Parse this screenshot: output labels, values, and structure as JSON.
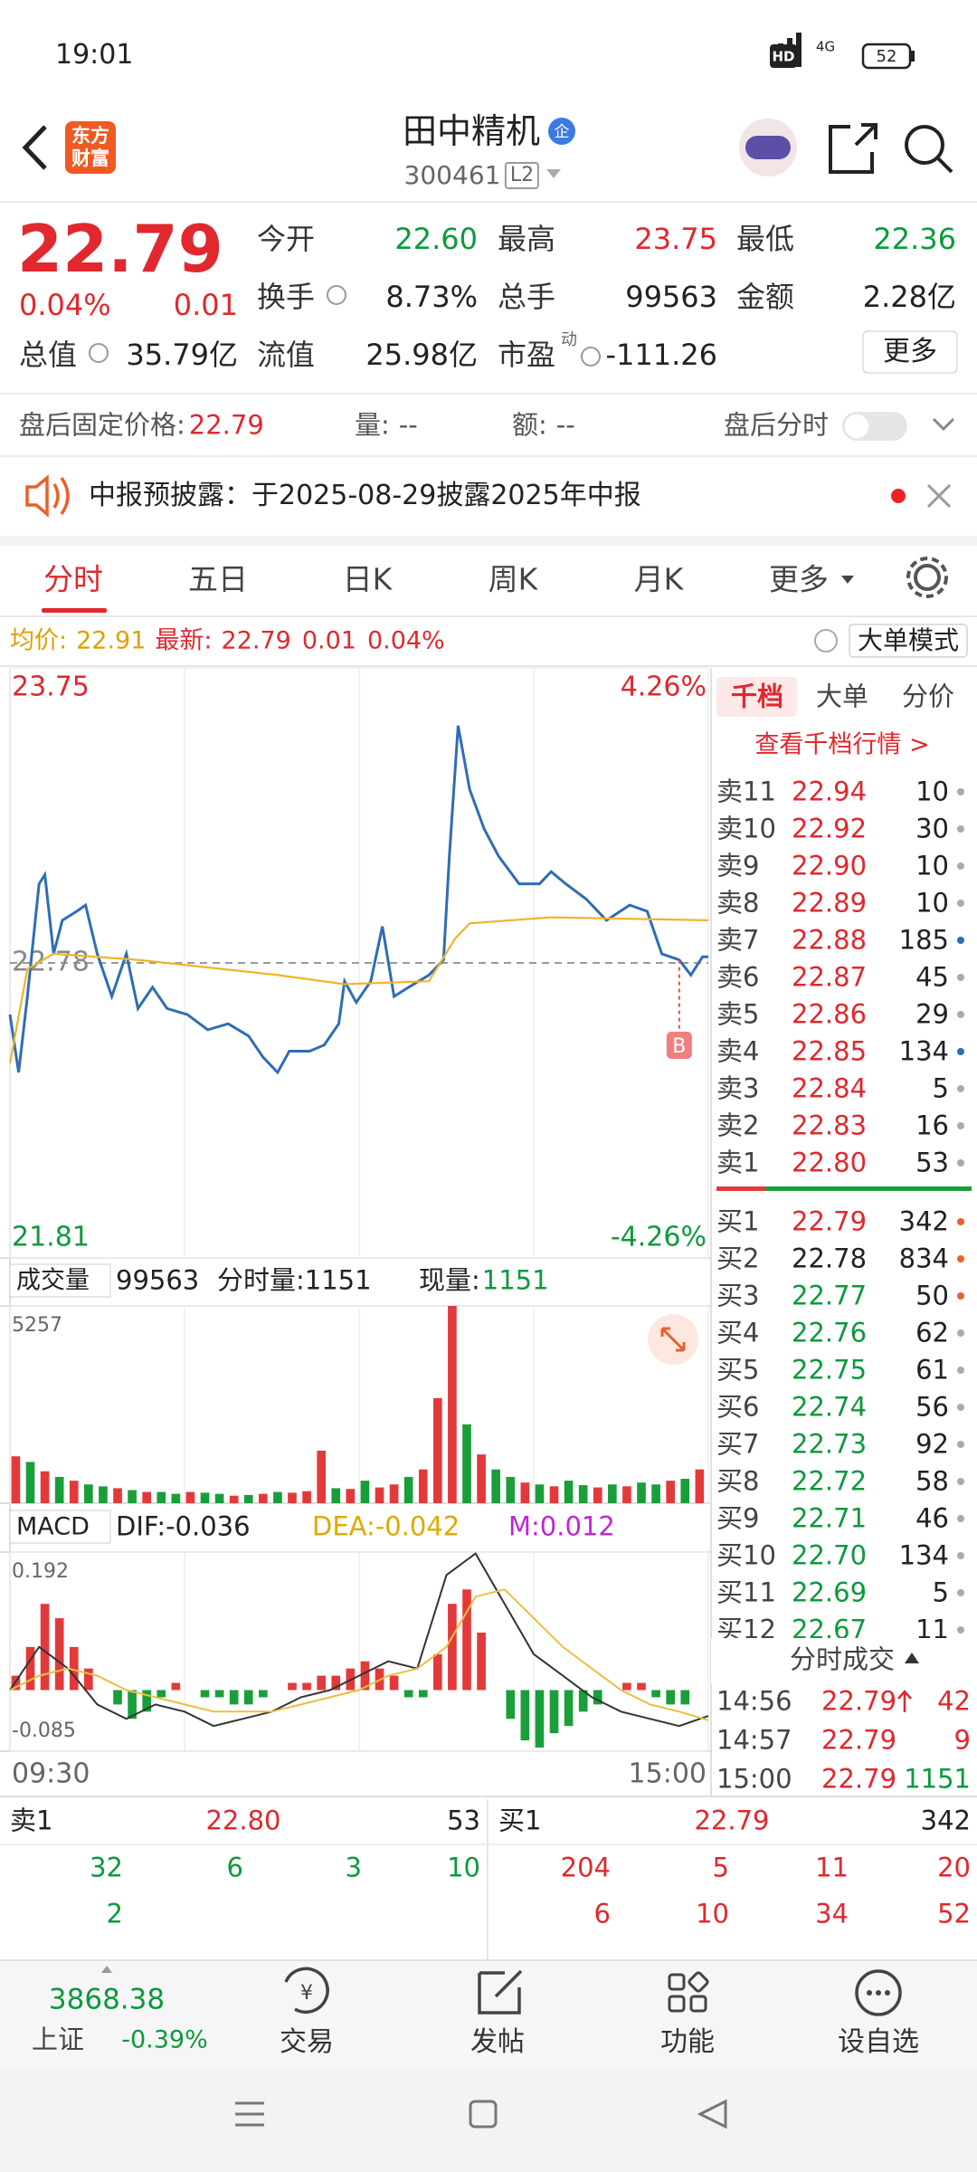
{
  "status_bar": {
    "time": "19:01",
    "hd": "HD",
    "network": "4G",
    "battery": "52"
  },
  "header": {
    "logo": [
      "东方",
      "财富"
    ],
    "title": "田中精机",
    "badge": "企",
    "code": "300461",
    "level": "L2"
  },
  "quote": {
    "price": "22.79",
    "change_pct": "0.04%",
    "change": "0.01",
    "fields": [
      {
        "label": "今开",
        "value": "22.60"
      },
      {
        "label": "最高",
        "value": "23.75"
      },
      {
        "label": "最低",
        "value": "22.36"
      },
      {
        "label": "换手",
        "value": "8.73%"
      },
      {
        "label": "总手",
        "value": "99563"
      },
      {
        "label": "金额",
        "value": "2.28亿"
      },
      {
        "label": "总值",
        "value": "35.79亿"
      },
      {
        "label": "流值",
        "value": "25.98亿"
      },
      {
        "label": "市盈",
        "value": "-111.26"
      }
    ],
    "pe_sup": "动",
    "more": "更多"
  },
  "after_hours": {
    "label": "盘后固定价格:",
    "price": "22.79",
    "volume_label": "量:",
    "volume": "--",
    "amount_label": "额:",
    "amount": "--",
    "toggle_label": "盘后分时"
  },
  "notice": "中报预披露：于2025-08-29披露2025年中报",
  "tabs": [
    "分时",
    "五日",
    "日K",
    "周K",
    "月K",
    "更多"
  ],
  "info_bar": {
    "avg_label": "均价:",
    "avg": "22.91",
    "last_label": "最新:",
    "last": "22.79",
    "change": "0.01",
    "change_pct": "0.04%",
    "mode": "大单模式"
  },
  "volume_header": {
    "selector": "成交量",
    "total": "99563",
    "minute_label": "分时量:1151",
    "current_label": "现量:",
    "current": "1151"
  },
  "macd_header": {
    "selector": "MACD",
    "dif": "DIF:-0.036",
    "dea": "DEA:-0.042",
    "m": "M:0.012"
  },
  "chart_data": [
    {
      "type": "line",
      "xlim": [
        0,
        240
      ],
      "ylim": [
        21.81,
        23.75
      ],
      "yticks": [
        23.75,
        22.78,
        21.81
      ],
      "y2lim": [
        -4.26,
        4.26
      ],
      "y2ticks": [
        {
          "value": 4.26,
          "label": "4.26%"
        },
        {
          "value": -4.26,
          "label": "-4.26%"
        }
      ],
      "series": [
        {
          "color": "#2f6db5",
          "x": [
            0,
            3,
            6,
            10,
            12,
            15,
            18,
            23,
            26,
            30,
            35,
            40,
            44,
            49,
            54,
            61,
            68,
            75,
            82,
            87,
            92,
            96,
            103,
            108,
            113,
            115,
            119,
            124,
            128,
            132,
            137,
            144,
            149,
            151,
            154,
            158,
            163,
            168,
            175,
            182,
            186,
            191,
            198,
            205,
            213,
            219,
            224,
            230,
            234,
            238,
            240
          ],
          "values": [
            22.61,
            22.42,
            22.67,
            23.04,
            23.07,
            22.81,
            22.92,
            22.95,
            22.97,
            22.81,
            22.67,
            22.81,
            22.63,
            22.7,
            22.63,
            22.61,
            22.56,
            22.58,
            22.54,
            22.47,
            22.42,
            22.49,
            22.49,
            22.51,
            22.58,
            22.72,
            22.65,
            22.72,
            22.9,
            22.67,
            22.7,
            22.74,
            22.79,
            23.13,
            23.56,
            23.35,
            23.22,
            23.13,
            23.04,
            23.04,
            23.08,
            23.04,
            22.99,
            22.92,
            22.97,
            22.95,
            22.81,
            22.79,
            22.74,
            22.8,
            22.8
          ]
        },
        {
          "color": "#f0b429",
          "x": [
            0,
            6,
            15,
            44,
            92,
            115,
            144,
            153,
            158,
            186,
            240
          ],
          "values": [
            22.45,
            22.76,
            22.81,
            22.79,
            22.74,
            22.71,
            22.72,
            22.86,
            22.91,
            22.93,
            22.92
          ]
        }
      ],
      "marker": {
        "label": "B",
        "x": 230
      }
    },
    {
      "type": "bar",
      "xlim": [
        0,
        240
      ],
      "ylim": [
        0,
        5257
      ],
      "yticks": [
        5257
      ],
      "x": [
        2,
        7,
        12,
        17,
        22,
        27,
        32,
        37,
        42,
        47,
        52,
        57,
        62,
        67,
        72,
        77,
        82,
        87,
        92,
        97,
        102,
        107,
        112,
        117,
        122,
        127,
        132,
        137,
        142,
        147,
        152,
        157,
        162,
        167,
        172,
        177,
        182,
        187,
        192,
        197,
        202,
        207,
        212,
        217,
        222,
        227,
        232,
        237
      ],
      "values": [
        1250,
        1100,
        850,
        700,
        600,
        500,
        450,
        400,
        350,
        300,
        300,
        250,
        300,
        280,
        250,
        200,
        220,
        250,
        300,
        280,
        320,
        1400,
        400,
        380,
        600,
        420,
        500,
        700,
        900,
        2800,
        5257,
        2100,
        1300,
        900,
        700,
        550,
        500,
        450,
        600,
        480,
        420,
        500,
        450,
        550,
        500,
        600,
        650,
        900
      ],
      "colors": [
        "#e23a3a",
        "#1a9e3a",
        "#e23a3a",
        "#1a9e3a",
        "#e23a3a",
        "#1a9e3a",
        "#1a9e3a",
        "#e23a3a",
        "#1a9e3a",
        "#e23a3a",
        "#1a9e3a",
        "#1a9e3a",
        "#e23a3a",
        "#1a9e3a",
        "#1a9e3a",
        "#e23a3a",
        "#1a9e3a",
        "#e23a3a",
        "#1a9e3a",
        "#e23a3a",
        "#e23a3a",
        "#e23a3a",
        "#1a9e3a",
        "#e23a3a",
        "#1a9e3a",
        "#e23a3a",
        "#e23a3a",
        "#1a9e3a",
        "#e23a3a",
        "#e23a3a",
        "#e23a3a",
        "#1a9e3a",
        "#e23a3a",
        "#1a9e3a",
        "#1a9e3a",
        "#e23a3a",
        "#1a9e3a",
        "#e23a3a",
        "#1a9e3a",
        "#1a9e3a",
        "#e23a3a",
        "#1a9e3a",
        "#e23a3a",
        "#1a9e3a",
        "#1a9e3a",
        "#e23a3a",
        "#1a9e3a",
        "#e23a3a"
      ]
    },
    {
      "type": "bar",
      "xlim": [
        0,
        240
      ],
      "ylim": [
        -0.085,
        0.192
      ],
      "yticks": [
        0.192,
        -0.085
      ],
      "xticks": [
        {
          "value": 0,
          "label": "09:30"
        },
        {
          "value": 240,
          "label": "15:00"
        }
      ],
      "x": [
        2,
        7,
        12,
        17,
        22,
        27,
        32,
        37,
        42,
        47,
        52,
        57,
        62,
        67,
        72,
        77,
        82,
        87,
        92,
        97,
        102,
        107,
        112,
        117,
        122,
        127,
        132,
        137,
        142,
        147,
        152,
        157,
        162,
        167,
        172,
        177,
        182,
        187,
        192,
        197,
        202,
        207,
        212,
        217,
        222,
        227,
        232,
        237
      ],
      "values": [
        0.02,
        0.06,
        0.12,
        0.1,
        0.06,
        0.03,
        0.0,
        -0.02,
        -0.04,
        -0.03,
        -0.01,
        0.01,
        0.0,
        -0.01,
        -0.01,
        -0.02,
        -0.02,
        -0.01,
        0.0,
        0.01,
        0.01,
        0.02,
        0.02,
        0.03,
        0.04,
        0.03,
        0.02,
        -0.01,
        -0.01,
        0.05,
        0.12,
        0.14,
        0.08,
        0.0,
        -0.04,
        -0.07,
        -0.08,
        -0.06,
        -0.05,
        -0.03,
        -0.02,
        0.0,
        0.01,
        0.01,
        -0.01,
        -0.02,
        -0.02,
        0.0
      ],
      "colors": {
        "positive": "#e23a3a",
        "negative": "#1a9e3a"
      },
      "lines": [
        {
          "color": "#333333",
          "x": [
            0,
            10,
            20,
            30,
            40,
            50,
            60,
            70,
            80,
            90,
            100,
            110,
            120,
            130,
            140,
            150,
            160,
            170,
            180,
            190,
            200,
            210,
            220,
            230,
            240
          ],
          "values": [
            0.0,
            0.06,
            0.03,
            -0.02,
            -0.04,
            -0.02,
            -0.03,
            -0.05,
            -0.04,
            -0.03,
            -0.01,
            0.0,
            0.02,
            0.04,
            0.03,
            0.16,
            0.19,
            0.12,
            0.05,
            0.02,
            -0.01,
            -0.03,
            -0.04,
            -0.05,
            -0.036
          ]
        },
        {
          "color": "#e8c040",
          "x": [
            0,
            10,
            20,
            30,
            40,
            50,
            60,
            70,
            80,
            90,
            100,
            110,
            120,
            130,
            140,
            150,
            160,
            170,
            180,
            190,
            200,
            210,
            220,
            230,
            240
          ],
          "values": [
            0.0,
            0.02,
            0.03,
            0.02,
            0.0,
            -0.01,
            -0.02,
            -0.03,
            -0.03,
            -0.03,
            -0.02,
            -0.01,
            0.0,
            0.02,
            0.03,
            0.06,
            0.13,
            0.14,
            0.1,
            0.06,
            0.03,
            0.0,
            -0.02,
            -0.03,
            -0.042
          ]
        }
      ]
    }
  ],
  "order_book": {
    "tabs": [
      "千档",
      "大单",
      "分价"
    ],
    "link": "查看千档行情 >",
    "asks": [
      {
        "label": "卖11",
        "price": "22.94",
        "qty": "10"
      },
      {
        "label": "卖10",
        "price": "22.92",
        "qty": "30"
      },
      {
        "label": "卖9",
        "price": "22.90",
        "qty": "10"
      },
      {
        "label": "卖8",
        "price": "22.89",
        "qty": "10"
      },
      {
        "label": "卖7",
        "price": "22.88",
        "qty": "185"
      },
      {
        "label": "卖6",
        "price": "22.87",
        "qty": "45"
      },
      {
        "label": "卖5",
        "price": "22.86",
        "qty": "29"
      },
      {
        "label": "卖4",
        "price": "22.85",
        "qty": "134"
      },
      {
        "label": "卖3",
        "price": "22.84",
        "qty": "5"
      },
      {
        "label": "卖2",
        "price": "22.83",
        "qty": "16"
      },
      {
        "label": "卖1",
        "price": "22.80",
        "qty": "53"
      }
    ],
    "bids": [
      {
        "label": "买1",
        "price": "22.79",
        "qty": "342"
      },
      {
        "label": "买2",
        "price": "22.78",
        "qty": "834"
      },
      {
        "label": "买3",
        "price": "22.77",
        "qty": "50"
      },
      {
        "label": "买4",
        "price": "22.76",
        "qty": "62"
      },
      {
        "label": "买5",
        "price": "22.75",
        "qty": "61"
      },
      {
        "label": "买6",
        "price": "22.74",
        "qty": "56"
      },
      {
        "label": "买7",
        "price": "22.73",
        "qty": "92"
      },
      {
        "label": "买8",
        "price": "22.72",
        "qty": "58"
      },
      {
        "label": "买9",
        "price": "22.71",
        "qty": "46"
      },
      {
        "label": "买10",
        "price": "22.70",
        "qty": "134"
      },
      {
        "label": "买11",
        "price": "22.69",
        "qty": "5"
      },
      {
        "label": "买12",
        "price": "22.67",
        "qty": "11"
      }
    ]
  },
  "trades": {
    "title": "分时成交",
    "rows": [
      {
        "time": "14:56",
        "price": "22.79",
        "qty": "42"
      },
      {
        "time": "14:57",
        "price": "22.79",
        "qty": "9"
      },
      {
        "time": "15:00",
        "price": "22.79",
        "qty": "1151"
      }
    ]
  },
  "depth": {
    "ask_label": "卖1",
    "ask_price": "22.80",
    "ask_qty": "53",
    "bid_label": "买1",
    "bid_price": "22.79",
    "bid_qty": "342",
    "ask_rows": [
      [
        "32",
        "6",
        "3",
        "10"
      ],
      [
        "2"
      ]
    ],
    "bid_rows": [
      [
        "204",
        "5",
        "11",
        "20"
      ],
      [
        "6",
        "10",
        "34",
        "52"
      ]
    ]
  },
  "bottom_nav": {
    "index_value": "3868.38",
    "index_name": "上证",
    "index_change": "-0.39%",
    "items": [
      "交易",
      "发帖",
      "功能",
      "设自选"
    ]
  }
}
